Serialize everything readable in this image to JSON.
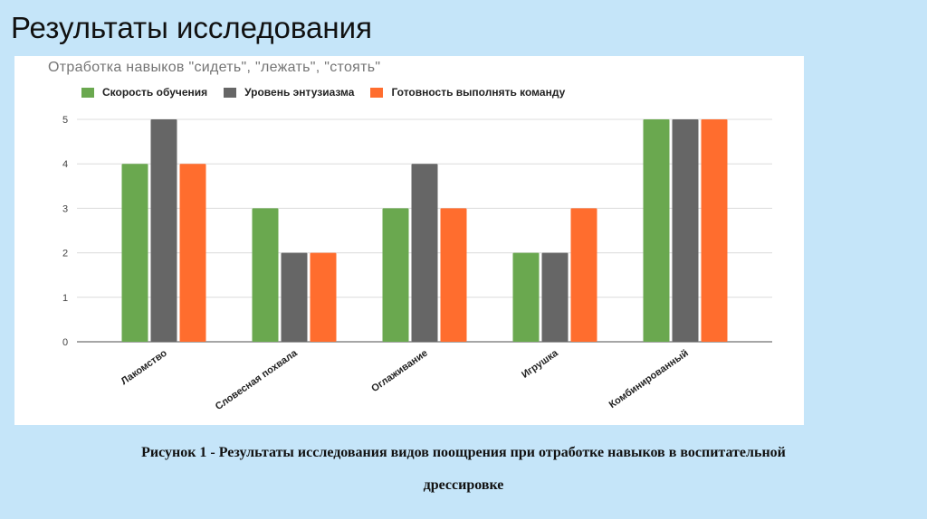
{
  "slide": {
    "title": "Результаты исследования",
    "caption_line1": "Рисунок 1 - Результаты исследования видов поощрения при отработке навыков в воспитательной",
    "caption_line2": "дрессировке"
  },
  "colors": {
    "background": "#c5e5f9",
    "series": [
      "#6aa84f",
      "#666666",
      "#ff6d2e"
    ]
  },
  "chart_data": {
    "type": "bar",
    "title": "Отработка навыков \"сидеть\", \"лежать\", \"стоять\"",
    "categories": [
      "Лакомство",
      "Словесная похвала",
      "Оглаживание",
      "Игрушка",
      "Комбинированный"
    ],
    "series": [
      {
        "name": "Скорость обучения",
        "color": "#6aa84f",
        "values": [
          4,
          3,
          3,
          2,
          5
        ]
      },
      {
        "name": "Уровень энтузиазма",
        "color": "#666666",
        "values": [
          5,
          2,
          4,
          2,
          5
        ]
      },
      {
        "name": "Готовность выполнять команду",
        "color": "#ff6d2e",
        "values": [
          4,
          2,
          3,
          3,
          5
        ]
      }
    ],
    "xlabel": "",
    "ylabel": "",
    "ylim": [
      0,
      5
    ],
    "yticks": [
      0,
      1,
      2,
      3,
      4,
      5
    ],
    "grid": true,
    "legend_position": "top"
  }
}
